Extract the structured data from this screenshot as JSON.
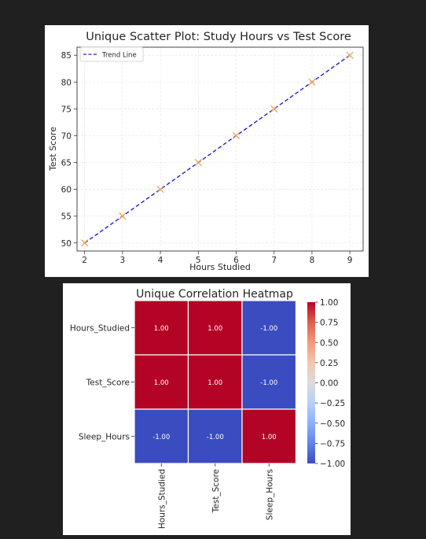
{
  "chart_data": [
    {
      "type": "scatter",
      "title": "Unique Scatter Plot: Study Hours vs Test Score",
      "xlabel": "Hours Studied",
      "ylabel": "Test Score",
      "xlim": [
        1.8,
        9.35
      ],
      "ylim": [
        48.5,
        86.5
      ],
      "xticks": [
        2,
        3,
        4,
        5,
        6,
        7,
        8,
        9
      ],
      "yticks": [
        50,
        55,
        60,
        65,
        70,
        75,
        80,
        85
      ],
      "grid": true,
      "legend_position": "top-left",
      "marker": "x",
      "points": {
        "x": [
          2,
          3,
          4,
          5,
          6,
          7,
          8,
          9
        ],
        "y": [
          50,
          55,
          60,
          65,
          70,
          75,
          80,
          85
        ],
        "color": "#e8a25a"
      },
      "series": [
        {
          "name": "Trend Line",
          "style": "dashed",
          "color": "#1f1fd6",
          "x": [
            2,
            9
          ],
          "y": [
            50,
            85
          ]
        }
      ]
    },
    {
      "type": "heatmap",
      "title": "Unique Correlation Heatmap",
      "rows": [
        "Hours_Studied",
        "Test_Score",
        "Sleep_Hours"
      ],
      "columns": [
        "Hours_Studied",
        "Test_Score",
        "Sleep_Hours"
      ],
      "values": [
        [
          1.0,
          1.0,
          -1.0
        ],
        [
          1.0,
          1.0,
          -1.0
        ],
        [
          -1.0,
          -1.0,
          1.0
        ]
      ],
      "value_labels": [
        [
          "1.00",
          "1.00",
          "-1.00"
        ],
        [
          "1.00",
          "1.00",
          "-1.00"
        ],
        [
          "-1.00",
          "-1.00",
          "1.00"
        ]
      ],
      "colormap": "coolwarm",
      "vmin": -1.0,
      "vmax": 1.0,
      "colorbar_ticks": [
        {
          "value": 1.0,
          "label": "1.00"
        },
        {
          "value": 0.75,
          "label": "0.75"
        },
        {
          "value": 0.5,
          "label": "0.50"
        },
        {
          "value": 0.25,
          "label": "0.25"
        },
        {
          "value": 0.0,
          "label": "0.00"
        },
        {
          "value": -0.25,
          "label": "−0.25"
        },
        {
          "value": -0.5,
          "label": "−0.50"
        },
        {
          "value": -0.75,
          "label": "−0.75"
        },
        {
          "value": -1.0,
          "label": "−1.00"
        }
      ],
      "colors": {
        "high": "#b40426",
        "low": "#3b4cc0"
      }
    }
  ]
}
